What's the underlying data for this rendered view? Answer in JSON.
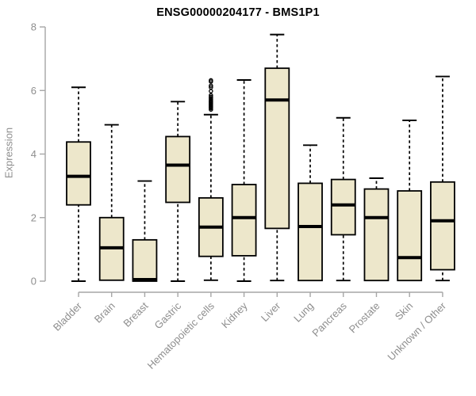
{
  "chart_data": {
    "type": "boxplot",
    "title": "ENSG00000204177 - BMS1P1",
    "xlabel": "",
    "ylabel": "Expression",
    "ylim": [
      0,
      8
    ],
    "yticks": [
      0,
      2,
      4,
      6,
      8
    ],
    "grid": false,
    "legend": "none",
    "categories": [
      "Bladder",
      "Brain",
      "Breast",
      "Gastric",
      "Hematopoietic cells",
      "Kidney",
      "Liver",
      "Lung",
      "Pancreas",
      "Prostate",
      "Skin",
      "Unknown / Other"
    ],
    "boxes": [
      {
        "category": "Bladder",
        "low": 0.0,
        "q1": 2.4,
        "median": 3.3,
        "q3": 4.38,
        "high": 6.1,
        "outliers": []
      },
      {
        "category": "Brain",
        "low": 0.0,
        "q1": 0.03,
        "median": 1.05,
        "q3": 2.0,
        "high": 4.92,
        "outliers": []
      },
      {
        "category": "Breast",
        "low": 0.0,
        "q1": 0.0,
        "median": 0.05,
        "q3": 1.3,
        "high": 3.15,
        "outliers": []
      },
      {
        "category": "Gastric",
        "low": 0.0,
        "q1": 2.48,
        "median": 3.65,
        "q3": 4.55,
        "high": 5.65,
        "outliers": []
      },
      {
        "category": "Hematopoietic cells",
        "low": 0.03,
        "q1": 0.78,
        "median": 1.7,
        "q3": 2.62,
        "high": 5.24,
        "outliers": [
          5.4,
          5.44,
          5.47,
          5.5,
          5.53,
          5.56,
          5.59,
          5.62,
          5.65,
          5.68,
          5.72,
          5.76,
          5.8,
          5.85,
          5.98,
          6.1,
          6.15,
          6.28,
          6.32
        ]
      },
      {
        "category": "Kidney",
        "low": 0.0,
        "q1": 0.8,
        "median": 2.0,
        "q3": 3.04,
        "high": 6.33,
        "outliers": []
      },
      {
        "category": "Liver",
        "low": 0.02,
        "q1": 1.66,
        "median": 5.7,
        "q3": 6.7,
        "high": 7.76,
        "outliers": []
      },
      {
        "category": "Lung",
        "low": 0.0,
        "q1": 0.02,
        "median": 1.72,
        "q3": 3.08,
        "high": 4.28,
        "outliers": []
      },
      {
        "category": "Pancreas",
        "low": 0.02,
        "q1": 1.46,
        "median": 2.4,
        "q3": 3.2,
        "high": 5.14,
        "outliers": []
      },
      {
        "category": "Prostate",
        "low": 0.0,
        "q1": 0.02,
        "median": 2.0,
        "q3": 2.9,
        "high": 3.24,
        "outliers": []
      },
      {
        "category": "Skin",
        "low": 0.0,
        "q1": 0.02,
        "median": 0.74,
        "q3": 2.84,
        "high": 5.06,
        "outliers": []
      },
      {
        "category": "Unknown / Other",
        "low": 0.02,
        "q1": 0.36,
        "median": 1.9,
        "q3": 3.12,
        "high": 6.44,
        "outliers": []
      }
    ],
    "colors": {
      "box_fill": "#ede7cb",
      "box_border": "#000000",
      "median": "#000000",
      "whisker": "#000000",
      "axis_line": "#a6a6a6",
      "tick_text": "#8e8e8e",
      "title_text": "#000000"
    }
  }
}
